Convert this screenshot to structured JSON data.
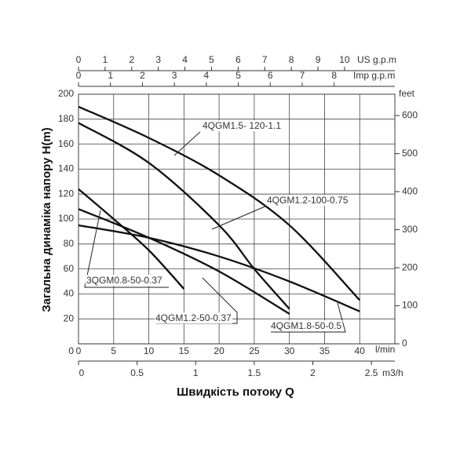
{
  "chart_data": {
    "type": "line",
    "xlabel": "Швидкість потоку Q",
    "ylabel": "Загальна динаміка напору H(m)",
    "x_unit": "l/min",
    "xlim": [
      0,
      45
    ],
    "xticks": [
      0,
      5,
      10,
      15,
      20,
      25,
      30,
      35,
      40
    ],
    "ylim": [
      0,
      200
    ],
    "yticks": [
      20,
      40,
      60,
      80,
      100,
      120,
      140,
      160,
      180,
      200
    ],
    "y0_label": 0,
    "y2_unit": "feet",
    "y2lim": [
      0,
      656.2
    ],
    "y2ticks": [
      0,
      100,
      200,
      300,
      400,
      500,
      600
    ],
    "grid": true,
    "top_axes": [
      {
        "unit": "US g.p.m",
        "lim": [
          0,
          11.89
        ],
        "ticks": [
          0,
          1,
          2,
          3,
          4,
          5,
          6,
          7,
          8,
          9,
          10
        ]
      },
      {
        "unit": "Imp g.p.m",
        "lim": [
          0,
          9.899
        ],
        "ticks": [
          0,
          1,
          2,
          3,
          4,
          5,
          6,
          7,
          8
        ]
      }
    ],
    "bottom_axis": {
      "unit": "m3/h",
      "lim": [
        0,
        2.7
      ],
      "ticks": [
        0,
        0.5,
        1,
        1.5,
        2,
        2.5
      ]
    },
    "series": [
      {
        "name": "4QGM1.5- 120-1.1",
        "color": "#111111",
        "x": [
          0,
          10,
          20,
          30,
          40
        ],
        "values": [
          190,
          165,
          135,
          95,
          35
        ]
      },
      {
        "name": "4QGM1.2-100-0.75",
        "color": "#111111",
        "x": [
          0,
          10,
          20,
          25,
          30
        ],
        "values": [
          177,
          145,
          95,
          60,
          28
        ]
      },
      {
        "name": "3QGM0.8-50-0.37",
        "color": "#111111",
        "x": [
          0,
          5,
          10,
          15
        ],
        "values": [
          124,
          100,
          75,
          44
        ]
      },
      {
        "name": "4QGM1.2-50-0.37",
        "color": "#111111",
        "x": [
          0,
          10,
          20,
          30
        ],
        "values": [
          108,
          85,
          58,
          24
        ]
      },
      {
        "name": "4QGM1.8-50-0.5",
        "color": "#111111",
        "x": [
          0,
          10,
          20,
          30,
          40
        ],
        "values": [
          95,
          85,
          70,
          50,
          26
        ]
      }
    ]
  }
}
